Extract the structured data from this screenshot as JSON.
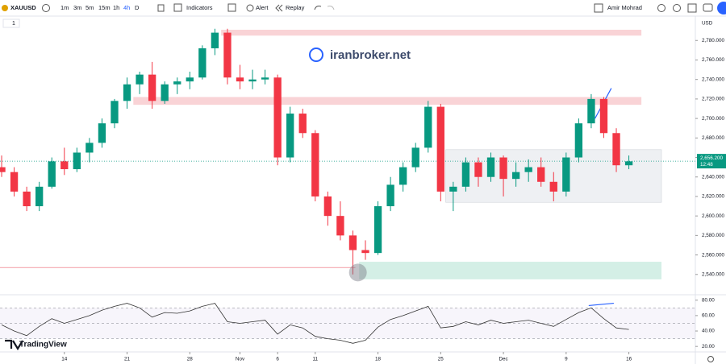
{
  "toolbar": {
    "symbol": "XAUUSD",
    "intervals": [
      "1m",
      "3m",
      "5m",
      "15m",
      "1h",
      "4h",
      "D"
    ],
    "indicators": "Indicators",
    "alert": "Alert",
    "replay": "Replay",
    "user": "Amir Mohrad"
  },
  "legend": {
    "count": "1"
  },
  "watermark": "iranbroker.net",
  "brand": "TradingView",
  "chart_data": [
    {
      "type": "candlestick",
      "currency": "USD",
      "open": [
        2650,
        2645,
        2625,
        2610,
        2630,
        2656,
        2648,
        2665,
        2675,
        2695,
        2718,
        2735,
        2745,
        2718,
        2735,
        2738,
        2742,
        2772,
        2788,
        2742,
        2738,
        2740,
        2742,
        2660,
        2705,
        2685,
        2620,
        2600,
        2580,
        2565,
        2562,
        2610,
        2632,
        2650,
        2670,
        2712,
        2625,
        2630,
        2655,
        2640,
        2660,
        2638,
        2645,
        2650,
        2635,
        2625,
        2660,
        2695,
        2720,
        2685,
        2652
      ],
      "high": [
        2662,
        2650,
        2630,
        2635,
        2660,
        2670,
        2670,
        2680,
        2700,
        2720,
        2742,
        2748,
        2758,
        2738,
        2742,
        2748,
        2775,
        2792,
        2792,
        2755,
        2750,
        2750,
        2745,
        2712,
        2710,
        2688,
        2625,
        2615,
        2585,
        2575,
        2615,
        2640,
        2655,
        2675,
        2718,
        2715,
        2635,
        2660,
        2660,
        2665,
        2662,
        2655,
        2658,
        2660,
        2645,
        2665,
        2700,
        2725,
        2722,
        2690,
        2662
      ],
      "low": [
        2640,
        2620,
        2605,
        2605,
        2628,
        2642,
        2645,
        2655,
        2670,
        2690,
        2710,
        2725,
        2710,
        2715,
        2725,
        2730,
        2740,
        2765,
        2735,
        2730,
        2730,
        2735,
        2652,
        2655,
        2680,
        2615,
        2590,
        2575,
        2540,
        2555,
        2560,
        2605,
        2625,
        2645,
        2665,
        2615,
        2605,
        2625,
        2630,
        2635,
        2620,
        2630,
        2635,
        2630,
        2615,
        2620,
        2655,
        2690,
        2680,
        2645,
        2648
      ],
      "close": [
        2645,
        2625,
        2610,
        2630,
        2656,
        2648,
        2665,
        2675,
        2695,
        2718,
        2735,
        2745,
        2718,
        2735,
        2738,
        2742,
        2772,
        2788,
        2742,
        2738,
        2740,
        2742,
        2660,
        2705,
        2685,
        2620,
        2600,
        2580,
        2565,
        2562,
        2610,
        2632,
        2650,
        2670,
        2712,
        2625,
        2630,
        2655,
        2640,
        2660,
        2638,
        2645,
        2650,
        2635,
        2625,
        2660,
        2695,
        2720,
        2685,
        2652,
        2656
      ],
      "colors": {
        "up": "#089981",
        "down": "#f23645"
      },
      "ylim": [
        2520,
        2805
      ],
      "yticks": [
        {
          "value": 2540,
          "label": "2,540.000"
        },
        {
          "value": 2560,
          "label": "2,560.000"
        },
        {
          "value": 2580,
          "label": "2,580.000"
        },
        {
          "value": 2600,
          "label": "2,600.000"
        },
        {
          "value": 2620,
          "label": "2,620.000"
        },
        {
          "value": 2640,
          "label": "2,640.000"
        },
        {
          "value": 2660,
          "label": "2,660.000"
        },
        {
          "value": 2680,
          "label": "2,680.000"
        },
        {
          "value": 2700,
          "label": "2,700.000"
        },
        {
          "value": 2720,
          "label": "2,720.000"
        },
        {
          "value": 2740,
          "label": "2,740.000"
        },
        {
          "value": 2760,
          "label": "2,760.000"
        },
        {
          "value": 2780,
          "label": "2,780.000"
        }
      ],
      "xlim": [
        -0.13,
        55.3
      ],
      "last_price": {
        "value": 2656.2,
        "label": "2,656.200"
      },
      "countdown": "12:48",
      "zones": [
        {
          "x": [
            17.5,
            51
          ],
          "y": [
            2785,
            2791
          ],
          "color": "#f9d3d6"
        },
        {
          "x": [
            10.5,
            51
          ],
          "y": [
            2714,
            2722
          ],
          "color": "#f9d3d6"
        },
        {
          "x": [
            35.4,
            52.6
          ],
          "y": [
            2614,
            2668
          ],
          "color": "#eef0f3"
        },
        {
          "x": [
            28.5,
            52.6
          ],
          "y": [
            2535,
            2553
          ],
          "color": "#d4efe6"
        }
      ],
      "lines": [
        {
          "x": [
            -0.2,
            28.2
          ],
          "y": [
            2547,
            2547
          ],
          "color": "#f4a7b0"
        },
        {
          "x": [
            47.3,
            48.6
          ],
          "y": [
            2700,
            2731
          ],
          "color": "#2962ff"
        }
      ],
      "marker": {
        "x": 28.4,
        "y": 2542
      }
    },
    {
      "type": "line",
      "color": "#333333",
      "values": [
        48,
        40,
        34,
        46,
        56,
        50,
        55,
        60,
        67,
        72,
        76,
        70,
        58,
        64,
        63,
        66,
        72,
        76,
        52,
        50,
        52,
        54,
        36,
        48,
        44,
        33,
        30,
        28,
        24,
        28,
        45,
        55,
        60,
        66,
        72,
        44,
        46,
        52,
        48,
        54,
        50,
        52,
        54,
        50,
        46,
        55,
        64,
        70,
        56,
        44,
        42
      ],
      "ylim": [
        16,
        86
      ],
      "yticks": [
        {
          "value": 20,
          "label": "20.00"
        },
        {
          "value": 40,
          "label": "40.00"
        },
        {
          "value": 60,
          "label": "60.00"
        },
        {
          "value": 80,
          "label": "80.00"
        }
      ],
      "levels": [
        70,
        50,
        30
      ],
      "trend": {
        "x": [
          46.8,
          48.8
        ],
        "y": [
          73,
          76
        ],
        "color": "#2962ff"
      },
      "xlim": [
        -0.13,
        55.3
      ],
      "xticks": [
        {
          "value": 5,
          "label": "14"
        },
        {
          "value": 10,
          "label": "21"
        },
        {
          "value": 15,
          "label": "28"
        },
        {
          "value": 19,
          "label": "Nov"
        },
        {
          "value": 22,
          "label": "6"
        },
        {
          "value": 25,
          "label": "11"
        },
        {
          "value": 30,
          "label": "18"
        },
        {
          "value": 35,
          "label": "25"
        },
        {
          "value": 40,
          "label": "Dec"
        },
        {
          "value": 45,
          "label": "9"
        },
        {
          "value": 50,
          "label": "16"
        }
      ]
    }
  ]
}
